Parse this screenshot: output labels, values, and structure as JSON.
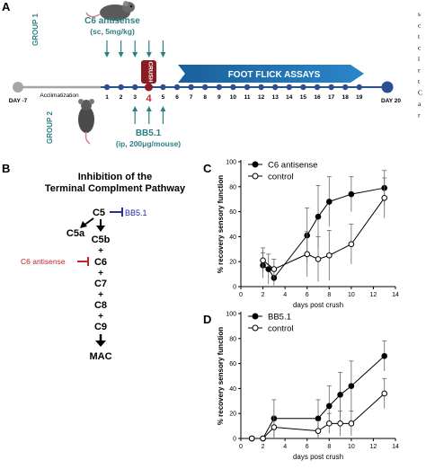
{
  "panels": {
    "A": "A",
    "B": "B",
    "C": "C",
    "D": "D"
  },
  "colors": {
    "teal": "#2c7f86",
    "blue": "#1d6fb3",
    "crush": "#8a1c24",
    "red": "#c0262b",
    "bb_blue": "#2c2c9e",
    "grey": "#a6a6a6",
    "dot": "#2c4f8f"
  },
  "timeline": {
    "group1": "GROUP 1",
    "group2": "GROUP 2",
    "c6_drug": "C6 antisense",
    "c6_dose": "(sc, 5mg/kg)",
    "bb_drug": "BB5.1",
    "bb_dose": "(ip, 200μg/mouse)",
    "crush": "CRUSH",
    "foot_flick": "FOOT FLICK ASSAYS",
    "acclimatization": "Acclimatization",
    "day_start": "DAY -7",
    "day_end": "DAY 20",
    "highlight_day": "4",
    "days": [
      "1",
      "2",
      "3",
      "",
      "5",
      "6",
      "7",
      "8",
      "9",
      "10",
      "11",
      "12",
      "13",
      "14",
      "15",
      "16",
      "17",
      "18",
      "19"
    ]
  },
  "side_text": [
    "s",
    "c",
    "t",
    "c",
    "l",
    "r",
    "t",
    "C",
    "a",
    "r"
  ],
  "pathway": {
    "title_line1": "Inhibition of the",
    "title_line2": "Terminal Complment Pathway",
    "c5": "C5",
    "c5a": "C5a",
    "c5b": "C5b",
    "c6": "C6",
    "c7": "C7",
    "c8": "C8",
    "c9": "C9",
    "mac": "MAC",
    "plus": "+",
    "bb51": "BB5.1",
    "c6_antisense": "C6 antisense"
  },
  "chart_data": [
    {
      "type": "line",
      "panel": "C",
      "xlabel": "days post crush",
      "ylabel": "% recovery sensory function",
      "xlim": [
        0,
        14
      ],
      "ylim": [
        0,
        100
      ],
      "xticks": [
        0,
        2,
        4,
        6,
        8,
        10,
        12,
        14
      ],
      "yticks": [
        0,
        20,
        40,
        60,
        80,
        100
      ],
      "legend_position": "top-left",
      "series": [
        {
          "name": "C6 antisense",
          "marker": "filled",
          "x": [
            2,
            2.5,
            3,
            6,
            7,
            8,
            10,
            13
          ],
          "y": [
            17,
            14,
            7,
            41,
            56,
            68,
            74,
            79
          ],
          "err": [
            10,
            12,
            6,
            22,
            25,
            20,
            14,
            14
          ]
        },
        {
          "name": "control",
          "marker": "open",
          "x": [
            2,
            3,
            6,
            7,
            8,
            10,
            13
          ],
          "y": [
            21,
            14,
            26,
            22,
            25,
            34,
            71
          ],
          "err": [
            10,
            8,
            18,
            18,
            20,
            16,
            16
          ]
        }
      ]
    },
    {
      "type": "line",
      "panel": "D",
      "xlabel": "days post crush",
      "ylabel": "% recovery sensory function",
      "xlim": [
        0,
        14
      ],
      "ylim": [
        0,
        100
      ],
      "xticks": [
        0,
        2,
        4,
        6,
        8,
        10,
        12,
        14
      ],
      "yticks": [
        0,
        20,
        40,
        60,
        80,
        100
      ],
      "legend_position": "top-left",
      "series": [
        {
          "name": "BB5.1",
          "marker": "filled",
          "x": [
            1,
            2,
            3,
            7,
            8,
            9,
            10,
            13
          ],
          "y": [
            0,
            0,
            16,
            16,
            26,
            35,
            42,
            66
          ],
          "err": [
            0,
            0,
            15,
            15,
            16,
            18,
            20,
            12
          ]
        },
        {
          "name": "control",
          "marker": "open",
          "x": [
            1,
            2,
            3,
            7,
            8,
            9,
            10,
            13
          ],
          "y": [
            0,
            0,
            9,
            6,
            12,
            12,
            12,
            36
          ],
          "err": [
            0,
            0,
            9,
            8,
            8,
            10,
            10,
            12
          ]
        }
      ]
    }
  ]
}
